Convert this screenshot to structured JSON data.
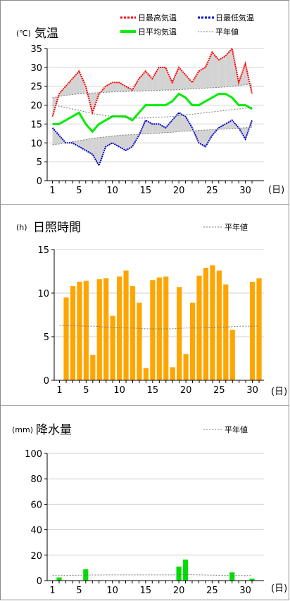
{
  "chart_data": [
    {
      "type": "line",
      "title": "気温",
      "unit": "(℃)",
      "x_unit": "(日)",
      "x": [
        1,
        2,
        3,
        4,
        5,
        6,
        7,
        8,
        9,
        10,
        11,
        12,
        13,
        14,
        15,
        16,
        17,
        18,
        19,
        20,
        21,
        22,
        23,
        24,
        25,
        26,
        27,
        28,
        29,
        30,
        31
      ],
      "xticks": [
        1,
        5,
        10,
        15,
        20,
        25,
        30
      ],
      "yticks": [
        0,
        5,
        10,
        15,
        20,
        25,
        30,
        35
      ],
      "ylim": [
        0,
        35
      ],
      "legend_position": "top-right",
      "series": [
        {
          "name": "日最高気温",
          "color": "#ff0000",
          "values": [
            17,
            23,
            25,
            27,
            29,
            25,
            18,
            23,
            25,
            26,
            26,
            25,
            24,
            27,
            29,
            27,
            30,
            30,
            26,
            30,
            28,
            26,
            29,
            30,
            34,
            32,
            33,
            35,
            26,
            31,
            23
          ]
        },
        {
          "name": "日最低気温",
          "color": "#0000cc",
          "values": [
            14,
            12,
            10,
            10,
            9,
            8,
            7,
            4,
            9,
            10,
            9,
            8,
            9,
            12,
            16,
            15,
            15,
            14,
            16,
            18,
            17,
            14,
            10,
            9,
            12,
            14,
            15,
            16,
            14,
            11,
            16
          ]
        },
        {
          "name": "日平均気温",
          "color": "#00ee00",
          "values": [
            15,
            15,
            16,
            17,
            18,
            15,
            13,
            15,
            16,
            17,
            17,
            17,
            16,
            18,
            20,
            20,
            20,
            20,
            21,
            23,
            22,
            20,
            20,
            21,
            22,
            23,
            23,
            22,
            20,
            20,
            19
          ]
        },
        {
          "name": "平年値",
          "color": "#777777",
          "values": [
            22,
            22.3,
            22.6,
            22.8,
            23,
            23.1,
            23.2,
            23.3,
            23.4,
            23.5,
            23.6,
            23.6,
            23.7,
            23.7,
            23.8,
            23.8,
            23.9,
            24,
            24,
            24.1,
            24.2,
            24.3,
            24.4,
            24.5,
            24.6,
            24.7,
            24.8,
            25,
            25.2,
            25.4,
            25.6
          ]
        },
        {
          "name": "平年値",
          "color": "#777777",
          "values": [
            20,
            19.7,
            19.4,
            19,
            18.6,
            18.2,
            17.8,
            17.5,
            17.2,
            17,
            16.8,
            16.7,
            16.6,
            16.6,
            16.6,
            16.7,
            16.8,
            16.9,
            17,
            17.2,
            17.4,
            17.6,
            17.8,
            18,
            18.2,
            18.4,
            18.6,
            18.8,
            19,
            19.2,
            19.4
          ]
        },
        {
          "name": "平年値",
          "color": "#777777",
          "values": [
            9.5,
            9.7,
            10,
            10.3,
            10.6,
            10.9,
            11.2,
            11.4,
            11.6,
            11.8,
            12,
            12.1,
            12.2,
            12.3,
            12.4,
            12.5,
            12.6,
            12.7,
            12.8,
            13,
            13.1,
            13.2,
            13.3,
            13.4,
            13.5,
            13.6,
            13.7,
            13.8,
            13.9,
            14,
            14.1
          ]
        }
      ]
    },
    {
      "type": "bar",
      "title": "日照時間",
      "unit": "(h)",
      "x_unit": "(日)",
      "x": [
        1,
        2,
        3,
        4,
        5,
        6,
        7,
        8,
        9,
        10,
        11,
        12,
        13,
        14,
        15,
        16,
        17,
        18,
        19,
        20,
        21,
        22,
        23,
        24,
        25,
        26,
        27,
        28,
        29,
        30,
        31
      ],
      "xticks": [
        1,
        5,
        10,
        15,
        20,
        25,
        30
      ],
      "yticks": [
        0,
        5,
        10,
        15
      ],
      "ylim": [
        0,
        15
      ],
      "legend": [
        "平年値"
      ],
      "legend_position": "top-right",
      "bar_color": "#ffa500",
      "values": [
        0,
        9.5,
        10.8,
        11.3,
        11.4,
        2.9,
        11.6,
        11.7,
        7.4,
        11.9,
        12.6,
        10.8,
        8.9,
        1.4,
        11.5,
        11.8,
        11.9,
        1.5,
        10.7,
        3.0,
        8.9,
        12.0,
        12.9,
        13.2,
        12.6,
        11.0,
        5.8,
        0,
        0,
        11.3,
        11.7
      ],
      "normal": [
        6.3,
        6.3,
        6.3,
        6.25,
        6.2,
        6.2,
        6.15,
        6.1,
        6.1,
        6.05,
        6,
        6,
        5.95,
        5.9,
        5.9,
        5.9,
        5.9,
        5.9,
        5.95,
        6,
        6,
        6,
        6.05,
        6.1,
        6.1,
        6.1,
        6.15,
        6.2,
        6.2,
        6.2,
        6.2
      ]
    },
    {
      "type": "bar",
      "title": "降水量",
      "unit": "(mm)",
      "x_unit": "(日)",
      "x": [
        1,
        2,
        3,
        4,
        5,
        6,
        7,
        8,
        9,
        10,
        11,
        12,
        13,
        14,
        15,
        16,
        17,
        18,
        19,
        20,
        21,
        22,
        23,
        24,
        25,
        26,
        27,
        28,
        29,
        30,
        31
      ],
      "xticks": [
        1,
        5,
        10,
        15,
        20,
        25,
        30
      ],
      "yticks": [
        0,
        20,
        40,
        60,
        80,
        100
      ],
      "ylim": [
        0,
        100
      ],
      "legend": [
        "平年値"
      ],
      "legend_position": "top-right",
      "bar_color": "#00dd00",
      "values": [
        0,
        2.5,
        0,
        0,
        0,
        9,
        0,
        0,
        0,
        0,
        0,
        0,
        0,
        0,
        0,
        0,
        0,
        0,
        0,
        11,
        16.5,
        0,
        0,
        0,
        0,
        0,
        0,
        6.5,
        0,
        0,
        1.5
      ],
      "normal": [
        4,
        4,
        4,
        4.2,
        4.3,
        4.3,
        4.4,
        4.4,
        4.5,
        4.5,
        4.5,
        4.5,
        4.5,
        4.5,
        4.5,
        4.5,
        4.5,
        4.5,
        4.5,
        4.6,
        4.6,
        4.6,
        4.5,
        4.4,
        4.3,
        4.2,
        4.1,
        4,
        4,
        4,
        4
      ]
    }
  ]
}
